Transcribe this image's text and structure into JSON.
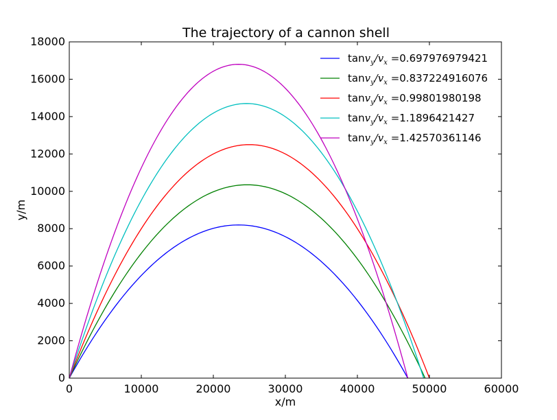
{
  "chart_data": {
    "type": "line",
    "title": "The trajectory of a cannon shell",
    "xlabel": "x/m",
    "ylabel": "y/m",
    "xlim": [
      0,
      60000
    ],
    "ylim": [
      0,
      18000
    ],
    "xticks": [
      0,
      10000,
      20000,
      30000,
      40000,
      50000,
      60000
    ],
    "yticks": [
      0,
      2000,
      4000,
      6000,
      8000,
      10000,
      12000,
      14000,
      16000,
      18000
    ],
    "xtick_labels": [
      "0",
      "10000",
      "20000",
      "30000",
      "40000",
      "50000",
      "60000"
    ],
    "ytick_labels": [
      "0",
      "2000",
      "4000",
      "6000",
      "8000",
      "10000",
      "12000",
      "14000",
      "16000",
      "18000"
    ],
    "grid": false,
    "legend_position": "top-right",
    "legend_prefix": "tan",
    "legend_math": {
      "v": "v",
      "y": "y",
      "x": "x",
      "slash": "/",
      "eq": "="
    },
    "series": [
      {
        "name": "0.697976979421",
        "color": "#0000ff",
        "slope": 0.697976979421,
        "peak_x": 23500,
        "peak_y": 8200,
        "range": 47000
      },
      {
        "name": "0.837224916076",
        "color": "#008000",
        "slope": 0.837224916076,
        "peak_x": 24700,
        "peak_y": 10350,
        "range": 49400
      },
      {
        "name": "0.99801980198",
        "color": "#ff0000",
        "slope": 0.99801980198,
        "peak_x": 25000,
        "peak_y": 12500,
        "range": 50000
      },
      {
        "name": "1.1896421427",
        "color": "#00bfbf",
        "slope": 1.1896421427,
        "peak_x": 24600,
        "peak_y": 14700,
        "range": 49200
      },
      {
        "name": "1.42570361146",
        "color": "#bf00bf",
        "slope": 1.42570361146,
        "peak_x": 23500,
        "peak_y": 16800,
        "range": 47000
      }
    ]
  }
}
